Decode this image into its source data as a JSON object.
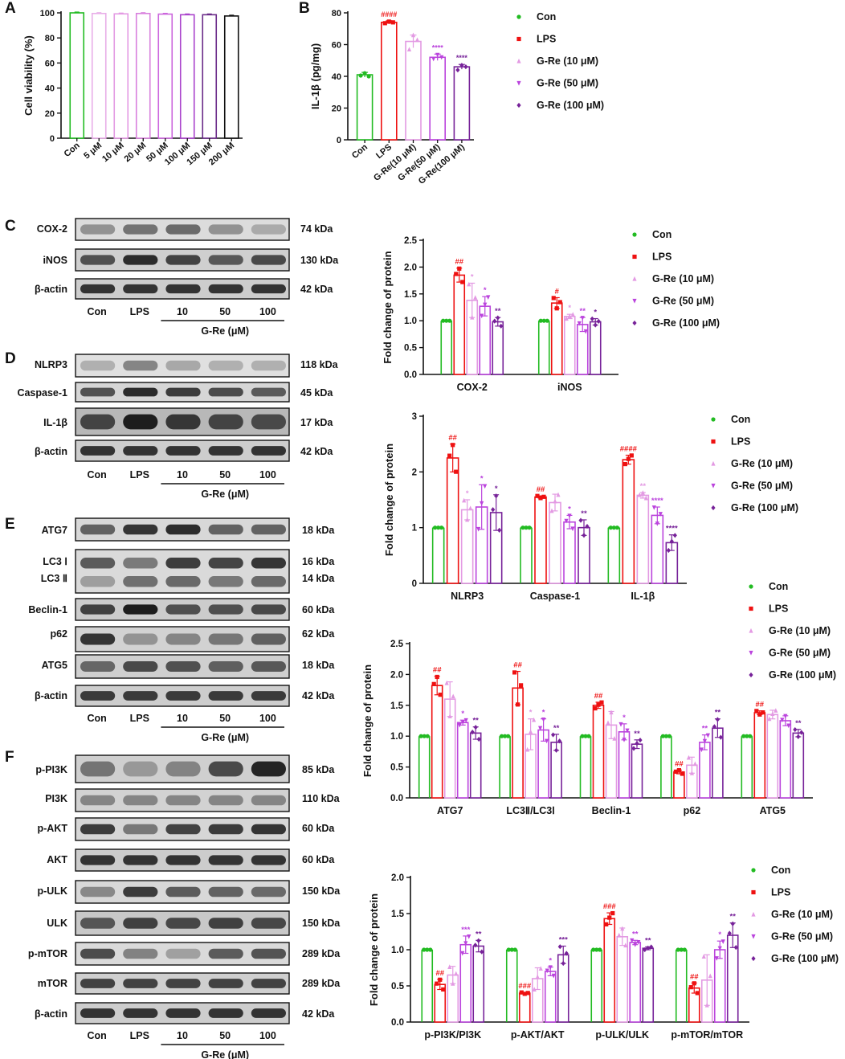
{
  "colors": {
    "con": "#22bb22",
    "lps": "#ee1111",
    "re10": "#e39ae3",
    "re50": "#bb44dd",
    "re100": "#772299",
    "sig": "#ee1111"
  },
  "legend_labels": [
    "Con",
    "LPS",
    "G-Re (10 μM)",
    "G-Re (50 μM)",
    "G-Re (100 μM)"
  ],
  "panel_letters": [
    "A",
    "B",
    "C",
    "D",
    "E",
    "F"
  ],
  "panelA": {
    "chart_data": {
      "type": "bar",
      "ylabel": "Cell viability (%)",
      "ylim": [
        0,
        100
      ],
      "yticks": [
        0,
        20,
        40,
        60,
        80,
        100
      ],
      "categories": [
        "Con",
        "5 μM",
        "10 μM",
        "20 μM",
        "50 μM",
        "100 μM",
        "150 μM",
        "200 μM"
      ],
      "values": [
        100,
        99.5,
        99.2,
        99.5,
        99,
        98.5,
        98.5,
        97.5
      ],
      "bar_colors": [
        "#22bb22",
        "#e8aee8",
        "#e39ae3",
        "#d880dd",
        "#cc66dd",
        "#aa44cc",
        "#6a2a88",
        "#111111"
      ]
    }
  },
  "panelB": {
    "chart_data": {
      "type": "bar",
      "ylabel": "IL-1β (pg/mg)",
      "ylim": [
        0,
        80
      ],
      "yticks": [
        0,
        20,
        40,
        60,
        80
      ],
      "categories": [
        "Con",
        "LPS",
        "G-Re(10 μM)",
        "G-Re(50 μM)",
        "G-Re(100 μM)"
      ],
      "values": [
        41,
        74,
        62,
        52,
        46
      ],
      "errors": [
        1.5,
        1,
        4,
        2,
        1.5
      ],
      "points": [
        [
          40.5,
          42,
          40
        ],
        [
          73.5,
          74.5,
          74
        ],
        [
          57,
          66,
          63
        ],
        [
          51,
          53.5,
          52
        ],
        [
          44,
          47,
          46
        ]
      ],
      "sig": [
        "",
        "####",
        "",
        "****",
        "****"
      ]
    }
  },
  "panelC": {
    "blot_labels": [
      "COX-2",
      "iNOS",
      "β-actin"
    ],
    "kda": [
      "74 kDa",
      "130 kDa",
      "42 kDa"
    ],
    "lanes": [
      "Con",
      "LPS",
      "10",
      "50",
      "100"
    ],
    "group_label": "G-Re (μM)",
    "chart_data": {
      "type": "bar",
      "ylabel": "Fold change of protein",
      "ylim": [
        0,
        2.5
      ],
      "yticks": [
        "0.0",
        "0.5",
        "1.0",
        "1.5",
        "2.0",
        "2.5"
      ],
      "categories": [
        "COX-2",
        "iNOS"
      ],
      "series": [
        {
          "name": "Con",
          "values": [
            1,
            1
          ],
          "errors": [
            0,
            0
          ],
          "sig": [
            "",
            ""
          ]
        },
        {
          "name": "LPS",
          "values": [
            1.85,
            1.33
          ],
          "errors": [
            0.13,
            0.1
          ],
          "sig": [
            "##",
            "#"
          ]
        },
        {
          "name": "G-Re (10 μM)",
          "values": [
            1.38,
            1.08
          ],
          "errors": [
            0.32,
            0.04
          ],
          "sig": [
            "*",
            "*"
          ]
        },
        {
          "name": "G-Re (50 μM)",
          "values": [
            1.27,
            0.93
          ],
          "errors": [
            0.18,
            0.13
          ],
          "sig": [
            "*",
            "**"
          ]
        },
        {
          "name": "G-Re (100 μM)",
          "values": [
            0.98,
            0.98
          ],
          "errors": [
            0.08,
            0.06
          ],
          "sig": [
            "**",
            "*"
          ]
        }
      ]
    }
  },
  "panelD": {
    "blot_labels": [
      "NLRP3",
      "Caspase-1",
      "IL-1β",
      "β-actin"
    ],
    "kda": [
      "118 kDa",
      "45 kDa",
      "17 kDa",
      "42 kDa"
    ],
    "lanes": [
      "Con",
      "LPS",
      "10",
      "50",
      "100"
    ],
    "group_label": "G-Re (μM)",
    "chart_data": {
      "type": "bar",
      "ylabel": "Fold change of protein",
      "ylim": [
        0,
        3
      ],
      "yticks": [
        "0",
        "1",
        "2",
        "3"
      ],
      "categories": [
        "NLRP3",
        "Caspase-1",
        "IL-1β"
      ],
      "series": [
        {
          "name": "Con",
          "values": [
            1,
            1,
            1
          ],
          "errors": [
            0,
            0,
            0
          ],
          "sig": [
            "",
            "",
            ""
          ]
        },
        {
          "name": "LPS",
          "values": [
            2.25,
            1.55,
            2.22
          ],
          "errors": [
            0.25,
            0.02,
            0.08
          ],
          "sig": [
            "##",
            "##",
            "####"
          ]
        },
        {
          "name": "G-Re (10 μM)",
          "values": [
            1.32,
            1.45,
            1.58
          ],
          "errors": [
            0.18,
            0.15,
            0.05
          ],
          "sig": [
            "*",
            "",
            "**"
          ]
        },
        {
          "name": "G-Re (50 μM)",
          "values": [
            1.37,
            1.1,
            1.22
          ],
          "errors": [
            0.4,
            0.12,
            0.15
          ],
          "sig": [
            "*",
            "*",
            "****"
          ]
        },
        {
          "name": "G-Re (100 μM)",
          "values": [
            1.27,
            1.0,
            0.73
          ],
          "errors": [
            0.32,
            0.14,
            0.14
          ],
          "sig": [
            "*",
            "**",
            "****"
          ]
        }
      ]
    }
  },
  "panelE": {
    "blot_labels": [
      "ATG7",
      "LC3 Ⅰ",
      "LC3 Ⅱ",
      "Beclin-1",
      "p62",
      "ATG5",
      "β-actin"
    ],
    "kda": [
      "18 kDa",
      "16 kDa",
      "14 kDa",
      "60 kDa",
      "62 kDa",
      "18 kDa",
      "42 kDa"
    ],
    "lanes": [
      "Con",
      "LPS",
      "10",
      "50",
      "100"
    ],
    "group_label": "G-Re (μM)",
    "chart_data": {
      "type": "bar",
      "ylabel": "Fold change of protein",
      "ylim": [
        0,
        2.5
      ],
      "yticks": [
        "0.0",
        "0.5",
        "1.0",
        "1.5",
        "2.0",
        "2.5"
      ],
      "categories": [
        "ATG7",
        "LC3Ⅱ/LC3Ⅰ",
        "Beclin-1",
        "p62",
        "ATG5"
      ],
      "series": [
        {
          "name": "Con",
          "values": [
            1,
            1,
            1,
            1,
            1
          ],
          "errors": [
            0,
            0,
            0,
            0,
            0
          ],
          "sig": [
            "",
            "",
            "",
            "",
            ""
          ]
        },
        {
          "name": "LPS",
          "values": [
            1.82,
            1.78,
            1.5,
            0.42,
            1.38
          ],
          "errors": [
            0.15,
            0.27,
            0.05,
            0.03,
            0.03
          ],
          "sig": [
            "##",
            "##",
            "##",
            "##",
            "##"
          ]
        },
        {
          "name": "G-Re (10 μM)",
          "values": [
            1.6,
            1.03,
            1.18,
            0.53,
            1.35
          ],
          "errors": [
            0.28,
            0.25,
            0.22,
            0.13,
            0.07
          ],
          "sig": [
            "",
            "*",
            "",
            "",
            ""
          ]
        },
        {
          "name": "G-Re (50 μM)",
          "values": [
            1.22,
            1.1,
            1.07,
            0.9,
            1.25
          ],
          "errors": [
            0.04,
            0.18,
            0.13,
            0.12,
            0.08
          ],
          "sig": [
            "*",
            "*",
            "*",
            "**",
            ""
          ]
        },
        {
          "name": "G-Re (100 μM)",
          "values": [
            1.05,
            0.9,
            0.87,
            1.13,
            1.05
          ],
          "errors": [
            0.1,
            0.13,
            0.07,
            0.15,
            0.06
          ],
          "sig": [
            "**",
            "**",
            "**",
            "**",
            "**"
          ]
        }
      ]
    }
  },
  "panelF": {
    "blot_labels": [
      "p-PI3K",
      "PI3K",
      "p-AKT",
      "AKT",
      "p-ULK",
      "ULK",
      "p-mTOR",
      "mTOR",
      "β-actin"
    ],
    "kda": [
      "85 kDa",
      "110 kDa",
      "60 kDa",
      "60 kDa",
      "150 kDa",
      "150 kDa",
      "289 kDa",
      "289 kDa",
      "42 kDa"
    ],
    "lanes": [
      "Con",
      "LPS",
      "10",
      "50",
      "100"
    ],
    "group_label": "G-Re (μM)",
    "chart_data": {
      "type": "bar",
      "ylabel": "Fold change of protein",
      "ylim": [
        0,
        2.0
      ],
      "yticks": [
        "0.0",
        "0.5",
        "1.0",
        "1.5",
        "2.0"
      ],
      "categories": [
        "p-PI3K/PI3K",
        "p-AKT/AKT",
        "p-ULK/ULK",
        "p-mTOR/mTOR"
      ],
      "series": [
        {
          "name": "Con",
          "values": [
            1,
            1,
            1,
            1
          ],
          "errors": [
            0,
            0,
            0,
            0
          ],
          "sig": [
            "",
            "",
            "",
            ""
          ]
        },
        {
          "name": "LPS",
          "values": [
            0.52,
            0.4,
            1.43,
            0.47
          ],
          "errors": [
            0.07,
            0.01,
            0.08,
            0.07
          ],
          "sig": [
            "##",
            "###",
            "###",
            "##"
          ]
        },
        {
          "name": "G-Re (10 μM)",
          "values": [
            0.65,
            0.6,
            1.18,
            0.58
          ],
          "errors": [
            0.12,
            0.15,
            0.12,
            0.35
          ],
          "sig": [
            "",
            "",
            "",
            ""
          ]
        },
        {
          "name": "G-Re (50 μM)",
          "values": [
            1.07,
            0.7,
            1.1,
            1.0
          ],
          "errors": [
            0.12,
            0.06,
            0.03,
            0.12
          ],
          "sig": [
            "***",
            "*",
            "**",
            "*"
          ]
        },
        {
          "name": "G-Re (100 μM)",
          "values": [
            1.05,
            0.93,
            1.02,
            1.2
          ],
          "errors": [
            0.08,
            0.12,
            0.02,
            0.17
          ],
          "sig": [
            "**",
            "***",
            "**",
            "**"
          ]
        }
      ]
    }
  }
}
